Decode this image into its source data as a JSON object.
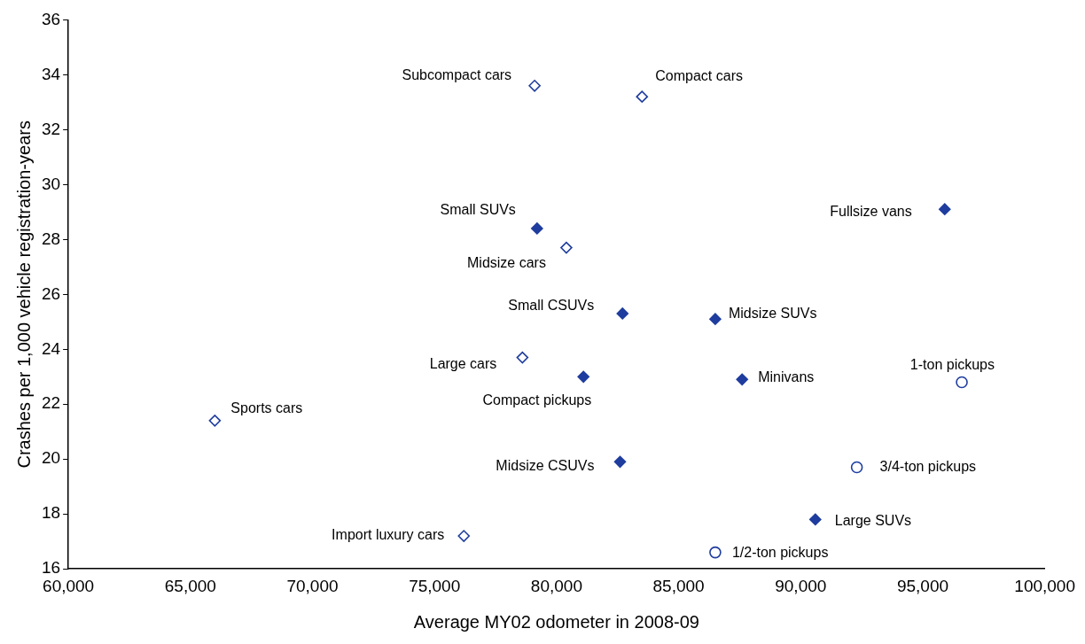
{
  "chart_data": {
    "type": "scatter",
    "xlabel": "Average MY02 odometer in 2008-09",
    "ylabel": "Crashes per 1,000 vehicle registration-years",
    "xlim": [
      60000,
      100000
    ],
    "xticks": [
      {
        "value": 60000,
        "label": "60,000"
      },
      {
        "value": 65000,
        "label": "65,000"
      },
      {
        "value": 70000,
        "label": "70,000"
      },
      {
        "value": 75000,
        "label": "75,000"
      },
      {
        "value": 80000,
        "label": "80,000"
      },
      {
        "value": 85000,
        "label": "85,000"
      },
      {
        "value": 90000,
        "label": "90,000"
      },
      {
        "value": 95000,
        "label": "95,000"
      },
      {
        "value": 100000,
        "label": "100,000"
      }
    ],
    "ylim": [
      16,
      36
    ],
    "yticks": [
      16,
      18,
      20,
      22,
      24,
      26,
      28,
      30,
      32,
      34,
      36
    ],
    "grid": false,
    "legend": false,
    "series": [
      {
        "color": "#1f3d9e",
        "marker": "diamond",
        "x": [
          79100,
          83500,
          80400,
          78600,
          66000,
          76200
        ],
        "values": [
          33.6,
          33.2,
          27.7,
          23.7,
          21.4,
          17.2
        ]
      },
      {
        "color": "#1f3d9e",
        "marker": "diamond",
        "x": [
          79200,
          95900,
          82700,
          86500,
          81100,
          87600,
          82600,
          90600
        ],
        "values": [
          28.4,
          29.1,
          25.3,
          25.1,
          23.0,
          22.9,
          19.9,
          17.8
        ]
      },
      {
        "color": "#1f3d9e",
        "marker": "circle",
        "x": [
          96600,
          92300,
          86500
        ],
        "values": [
          22.8,
          19.7,
          16.6
        ]
      }
    ],
    "annotations": [
      {
        "text": "Subcompact cars",
        "x": 79100,
        "y": 33.6
      },
      {
        "text": "Compact cars",
        "x": 83500,
        "y": 33.2
      },
      {
        "text": "Small SUVs",
        "x": 79200,
        "y": 28.4
      },
      {
        "text": "Midsize cars",
        "x": 80400,
        "y": 27.7
      },
      {
        "text": "Fullsize vans",
        "x": 95900,
        "y": 29.1
      },
      {
        "text": "Small CSUVs",
        "x": 82700,
        "y": 25.3
      },
      {
        "text": "Midsize SUVs",
        "x": 86500,
        "y": 25.1
      },
      {
        "text": "Large cars",
        "x": 78600,
        "y": 23.7
      },
      {
        "text": "Compact pickups",
        "x": 81100,
        "y": 23.0
      },
      {
        "text": "Minivans",
        "x": 87600,
        "y": 22.9
      },
      {
        "text": "1-ton pickups",
        "x": 96600,
        "y": 22.8
      },
      {
        "text": "Sports cars",
        "x": 66000,
        "y": 21.4
      },
      {
        "text": "Midsize CSUVs",
        "x": 82600,
        "y": 19.9
      },
      {
        "text": "3/4-ton pickups",
        "x": 92300,
        "y": 19.7
      },
      {
        "text": "Large SUVs",
        "x": 90600,
        "y": 17.8
      },
      {
        "text": "Import luxury cars",
        "x": 76200,
        "y": 17.2
      },
      {
        "text": "1/2-ton pickups",
        "x": 86500,
        "y": 16.6
      }
    ]
  }
}
